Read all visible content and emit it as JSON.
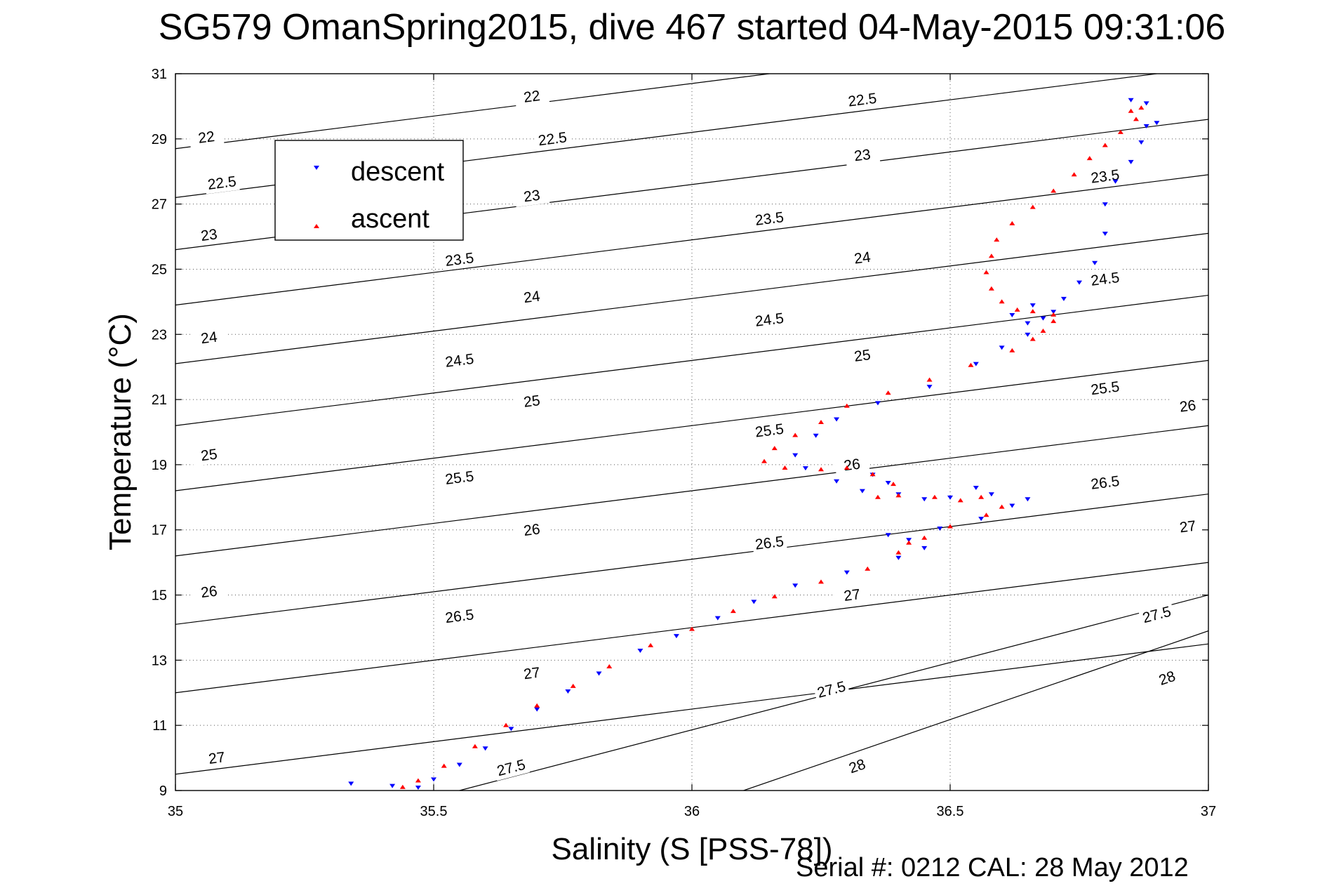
{
  "chart_data": {
    "type": "scatter",
    "title": "SG579 OmanSpring2015, dive 467 started 04-May-2015 09:31:06",
    "xlabel": "Salinity (S [PSS-78])",
    "ylabel": "Temperature (°C)",
    "xlim": [
      35,
      37
    ],
    "ylim": [
      9,
      31
    ],
    "xticks": [
      35,
      35.5,
      36,
      36.5,
      37
    ],
    "xtick_labels": [
      "35",
      "35.5",
      "36",
      "36.5",
      "37"
    ],
    "yticks": [
      9,
      11,
      13,
      15,
      17,
      19,
      21,
      23,
      25,
      27,
      29,
      31
    ],
    "ytick_labels": [
      "9",
      "11",
      "13",
      "15",
      "17",
      "19",
      "21",
      "23",
      "25",
      "27",
      "29",
      "31"
    ],
    "grid": true,
    "legend_position": "top-left",
    "footer": "Serial #: 0212  CAL: 28 May 2012",
    "contours": [
      {
        "level": "22",
        "x": [
          35,
          37
        ],
        "y": [
          28.7,
          32.7
        ],
        "labels": [
          [
            35.06,
            29.05
          ],
          [
            35.69,
            30.3
          ]
        ]
      },
      {
        "level": "22.5",
        "x": [
          35,
          37
        ],
        "y": [
          27.2,
          31.2
        ],
        "labels": [
          [
            35.09,
            27.65
          ],
          [
            35.73,
            29.0
          ],
          [
            36.33,
            30.2
          ]
        ]
      },
      {
        "level": "23",
        "x": [
          35,
          37
        ],
        "y": [
          25.6,
          29.6
        ],
        "labels": [
          [
            35.065,
            26.05
          ],
          [
            35.69,
            27.25
          ],
          [
            36.33,
            28.5
          ]
        ]
      },
      {
        "level": "23.5",
        "x": [
          35,
          37
        ],
        "y": [
          23.9,
          27.9
        ],
        "labels": [
          [
            35.55,
            25.3
          ],
          [
            36.15,
            26.55
          ],
          [
            36.8,
            27.85
          ]
        ]
      },
      {
        "level": "24",
        "x": [
          35,
          37
        ],
        "y": [
          22.1,
          26.1
        ],
        "labels": [
          [
            35.065,
            22.9
          ],
          [
            35.69,
            24.15
          ],
          [
            36.33,
            25.35
          ]
        ]
      },
      {
        "level": "24.5",
        "x": [
          35,
          37
        ],
        "y": [
          20.2,
          24.2
        ],
        "labels": [
          [
            35.55,
            22.2
          ],
          [
            36.15,
            23.45
          ],
          [
            36.8,
            24.7
          ]
        ]
      },
      {
        "level": "25",
        "x": [
          35,
          37
        ],
        "y": [
          18.2,
          22.2
        ],
        "labels": [
          [
            35.065,
            19.3
          ],
          [
            35.69,
            20.95
          ],
          [
            36.33,
            22.35
          ]
        ]
      },
      {
        "level": "25.5",
        "x": [
          35,
          37
        ],
        "y": [
          16.2,
          20.2
        ],
        "labels": [
          [
            35.55,
            18.6
          ],
          [
            36.15,
            20.05
          ],
          [
            36.8,
            21.35
          ]
        ]
      },
      {
        "level": "26",
        "x": [
          35,
          37
        ],
        "y": [
          14.1,
          18.1
        ],
        "labels": [
          [
            35.065,
            15.1
          ],
          [
            35.69,
            17.0
          ],
          [
            36.31,
            19.0
          ],
          [
            36.96,
            20.8
          ]
        ]
      },
      {
        "level": "26.5",
        "x": [
          35,
          37
        ],
        "y": [
          12.0,
          16.0
        ],
        "labels": [
          [
            35.55,
            14.35
          ],
          [
            36.15,
            16.6
          ],
          [
            36.8,
            18.45
          ]
        ]
      },
      {
        "level": "27",
        "x": [
          35,
          37
        ],
        "y": [
          9.5,
          13.5
        ],
        "labels": [
          [
            35.08,
            10.0
          ],
          [
            35.69,
            12.6
          ],
          [
            36.31,
            15.0
          ],
          [
            36.96,
            17.1
          ]
        ]
      },
      {
        "level": "27.5",
        "x": [
          35.55,
          37
        ],
        "y": [
          9.0,
          15.0
        ],
        "labels": [
          [
            35.65,
            9.7
          ],
          [
            36.27,
            12.1
          ],
          [
            36.9,
            14.4
          ]
        ]
      },
      {
        "level": "28",
        "x": [
          36.1,
          37
        ],
        "y": [
          9.0,
          13.9
        ],
        "labels": [
          [
            36.32,
            9.75
          ],
          [
            36.92,
            12.45
          ]
        ]
      }
    ],
    "series": [
      {
        "name": "descent",
        "marker": "triangle-down",
        "color": "#0000ff",
        "points": [
          [
            35.34,
            9.22
          ],
          [
            35.42,
            9.15
          ],
          [
            35.47,
            9.1
          ],
          [
            35.5,
            9.35
          ],
          [
            35.55,
            9.8
          ],
          [
            35.6,
            10.3
          ],
          [
            35.65,
            10.9
          ],
          [
            35.7,
            11.5
          ],
          [
            35.76,
            12.05
          ],
          [
            35.82,
            12.6
          ],
          [
            35.9,
            13.3
          ],
          [
            35.97,
            13.75
          ],
          [
            36.05,
            14.3
          ],
          [
            36.12,
            14.8
          ],
          [
            36.2,
            15.3
          ],
          [
            36.3,
            15.7
          ],
          [
            36.4,
            16.15
          ],
          [
            36.45,
            16.45
          ],
          [
            36.42,
            16.7
          ],
          [
            36.38,
            16.85
          ],
          [
            36.48,
            17.05
          ],
          [
            36.56,
            17.35
          ],
          [
            36.62,
            17.75
          ],
          [
            36.65,
            17.95
          ],
          [
            36.58,
            18.1
          ],
          [
            36.55,
            18.3
          ],
          [
            36.5,
            18.0
          ],
          [
            36.45,
            17.95
          ],
          [
            36.4,
            18.1
          ],
          [
            36.38,
            18.45
          ],
          [
            36.35,
            18.7
          ],
          [
            36.33,
            18.2
          ],
          [
            36.28,
            18.5
          ],
          [
            36.22,
            18.9
          ],
          [
            36.2,
            19.3
          ],
          [
            36.24,
            19.9
          ],
          [
            36.28,
            20.4
          ],
          [
            36.36,
            20.9
          ],
          [
            36.46,
            21.4
          ],
          [
            36.55,
            22.1
          ],
          [
            36.6,
            22.6
          ],
          [
            36.65,
            23.0
          ],
          [
            36.68,
            23.5
          ],
          [
            36.7,
            23.7
          ],
          [
            36.66,
            23.9
          ],
          [
            36.62,
            23.6
          ],
          [
            36.65,
            23.35
          ],
          [
            36.72,
            24.1
          ],
          [
            36.75,
            24.6
          ],
          [
            36.78,
            25.2
          ],
          [
            36.8,
            26.1
          ],
          [
            36.8,
            27.0
          ],
          [
            36.82,
            27.7
          ],
          [
            36.85,
            28.3
          ],
          [
            36.87,
            28.9
          ],
          [
            36.88,
            29.4
          ],
          [
            36.9,
            29.5
          ],
          [
            36.88,
            30.1
          ],
          [
            36.85,
            30.2
          ]
        ]
      },
      {
        "name": "ascent",
        "marker": "triangle-up",
        "color": "#ff0000",
        "points": [
          [
            35.44,
            9.1
          ],
          [
            35.47,
            9.3
          ],
          [
            35.52,
            9.75
          ],
          [
            35.58,
            10.35
          ],
          [
            35.64,
            11.0
          ],
          [
            35.7,
            11.6
          ],
          [
            35.77,
            12.2
          ],
          [
            35.84,
            12.8
          ],
          [
            35.92,
            13.45
          ],
          [
            36.0,
            13.95
          ],
          [
            36.08,
            14.5
          ],
          [
            36.16,
            14.95
          ],
          [
            36.25,
            15.4
          ],
          [
            36.34,
            15.8
          ],
          [
            36.4,
            16.3
          ],
          [
            36.42,
            16.6
          ],
          [
            36.45,
            16.75
          ],
          [
            36.5,
            17.1
          ],
          [
            36.57,
            17.45
          ],
          [
            36.6,
            17.7
          ],
          [
            36.56,
            18.0
          ],
          [
            36.52,
            17.9
          ],
          [
            36.47,
            18.0
          ],
          [
            36.4,
            18.05
          ],
          [
            36.36,
            18.0
          ],
          [
            36.39,
            18.4
          ],
          [
            36.35,
            18.7
          ],
          [
            36.3,
            18.9
          ],
          [
            36.25,
            18.85
          ],
          [
            36.18,
            18.9
          ],
          [
            36.14,
            19.1
          ],
          [
            36.16,
            19.5
          ],
          [
            36.2,
            19.9
          ],
          [
            36.25,
            20.3
          ],
          [
            36.3,
            20.8
          ],
          [
            36.38,
            21.2
          ],
          [
            36.46,
            21.6
          ],
          [
            36.54,
            22.05
          ],
          [
            36.62,
            22.5
          ],
          [
            36.66,
            22.85
          ],
          [
            36.68,
            23.1
          ],
          [
            36.7,
            23.4
          ],
          [
            36.7,
            23.6
          ],
          [
            36.66,
            23.7
          ],
          [
            36.63,
            23.75
          ],
          [
            36.6,
            24.0
          ],
          [
            36.58,
            24.4
          ],
          [
            36.57,
            24.9
          ],
          [
            36.58,
            25.4
          ],
          [
            36.59,
            25.9
          ],
          [
            36.62,
            26.4
          ],
          [
            36.66,
            26.9
          ],
          [
            36.7,
            27.4
          ],
          [
            36.74,
            27.9
          ],
          [
            36.77,
            28.4
          ],
          [
            36.8,
            28.8
          ],
          [
            36.83,
            29.2
          ],
          [
            36.86,
            29.6
          ],
          [
            36.85,
            29.85
          ],
          [
            36.87,
            29.95
          ]
        ]
      }
    ]
  }
}
